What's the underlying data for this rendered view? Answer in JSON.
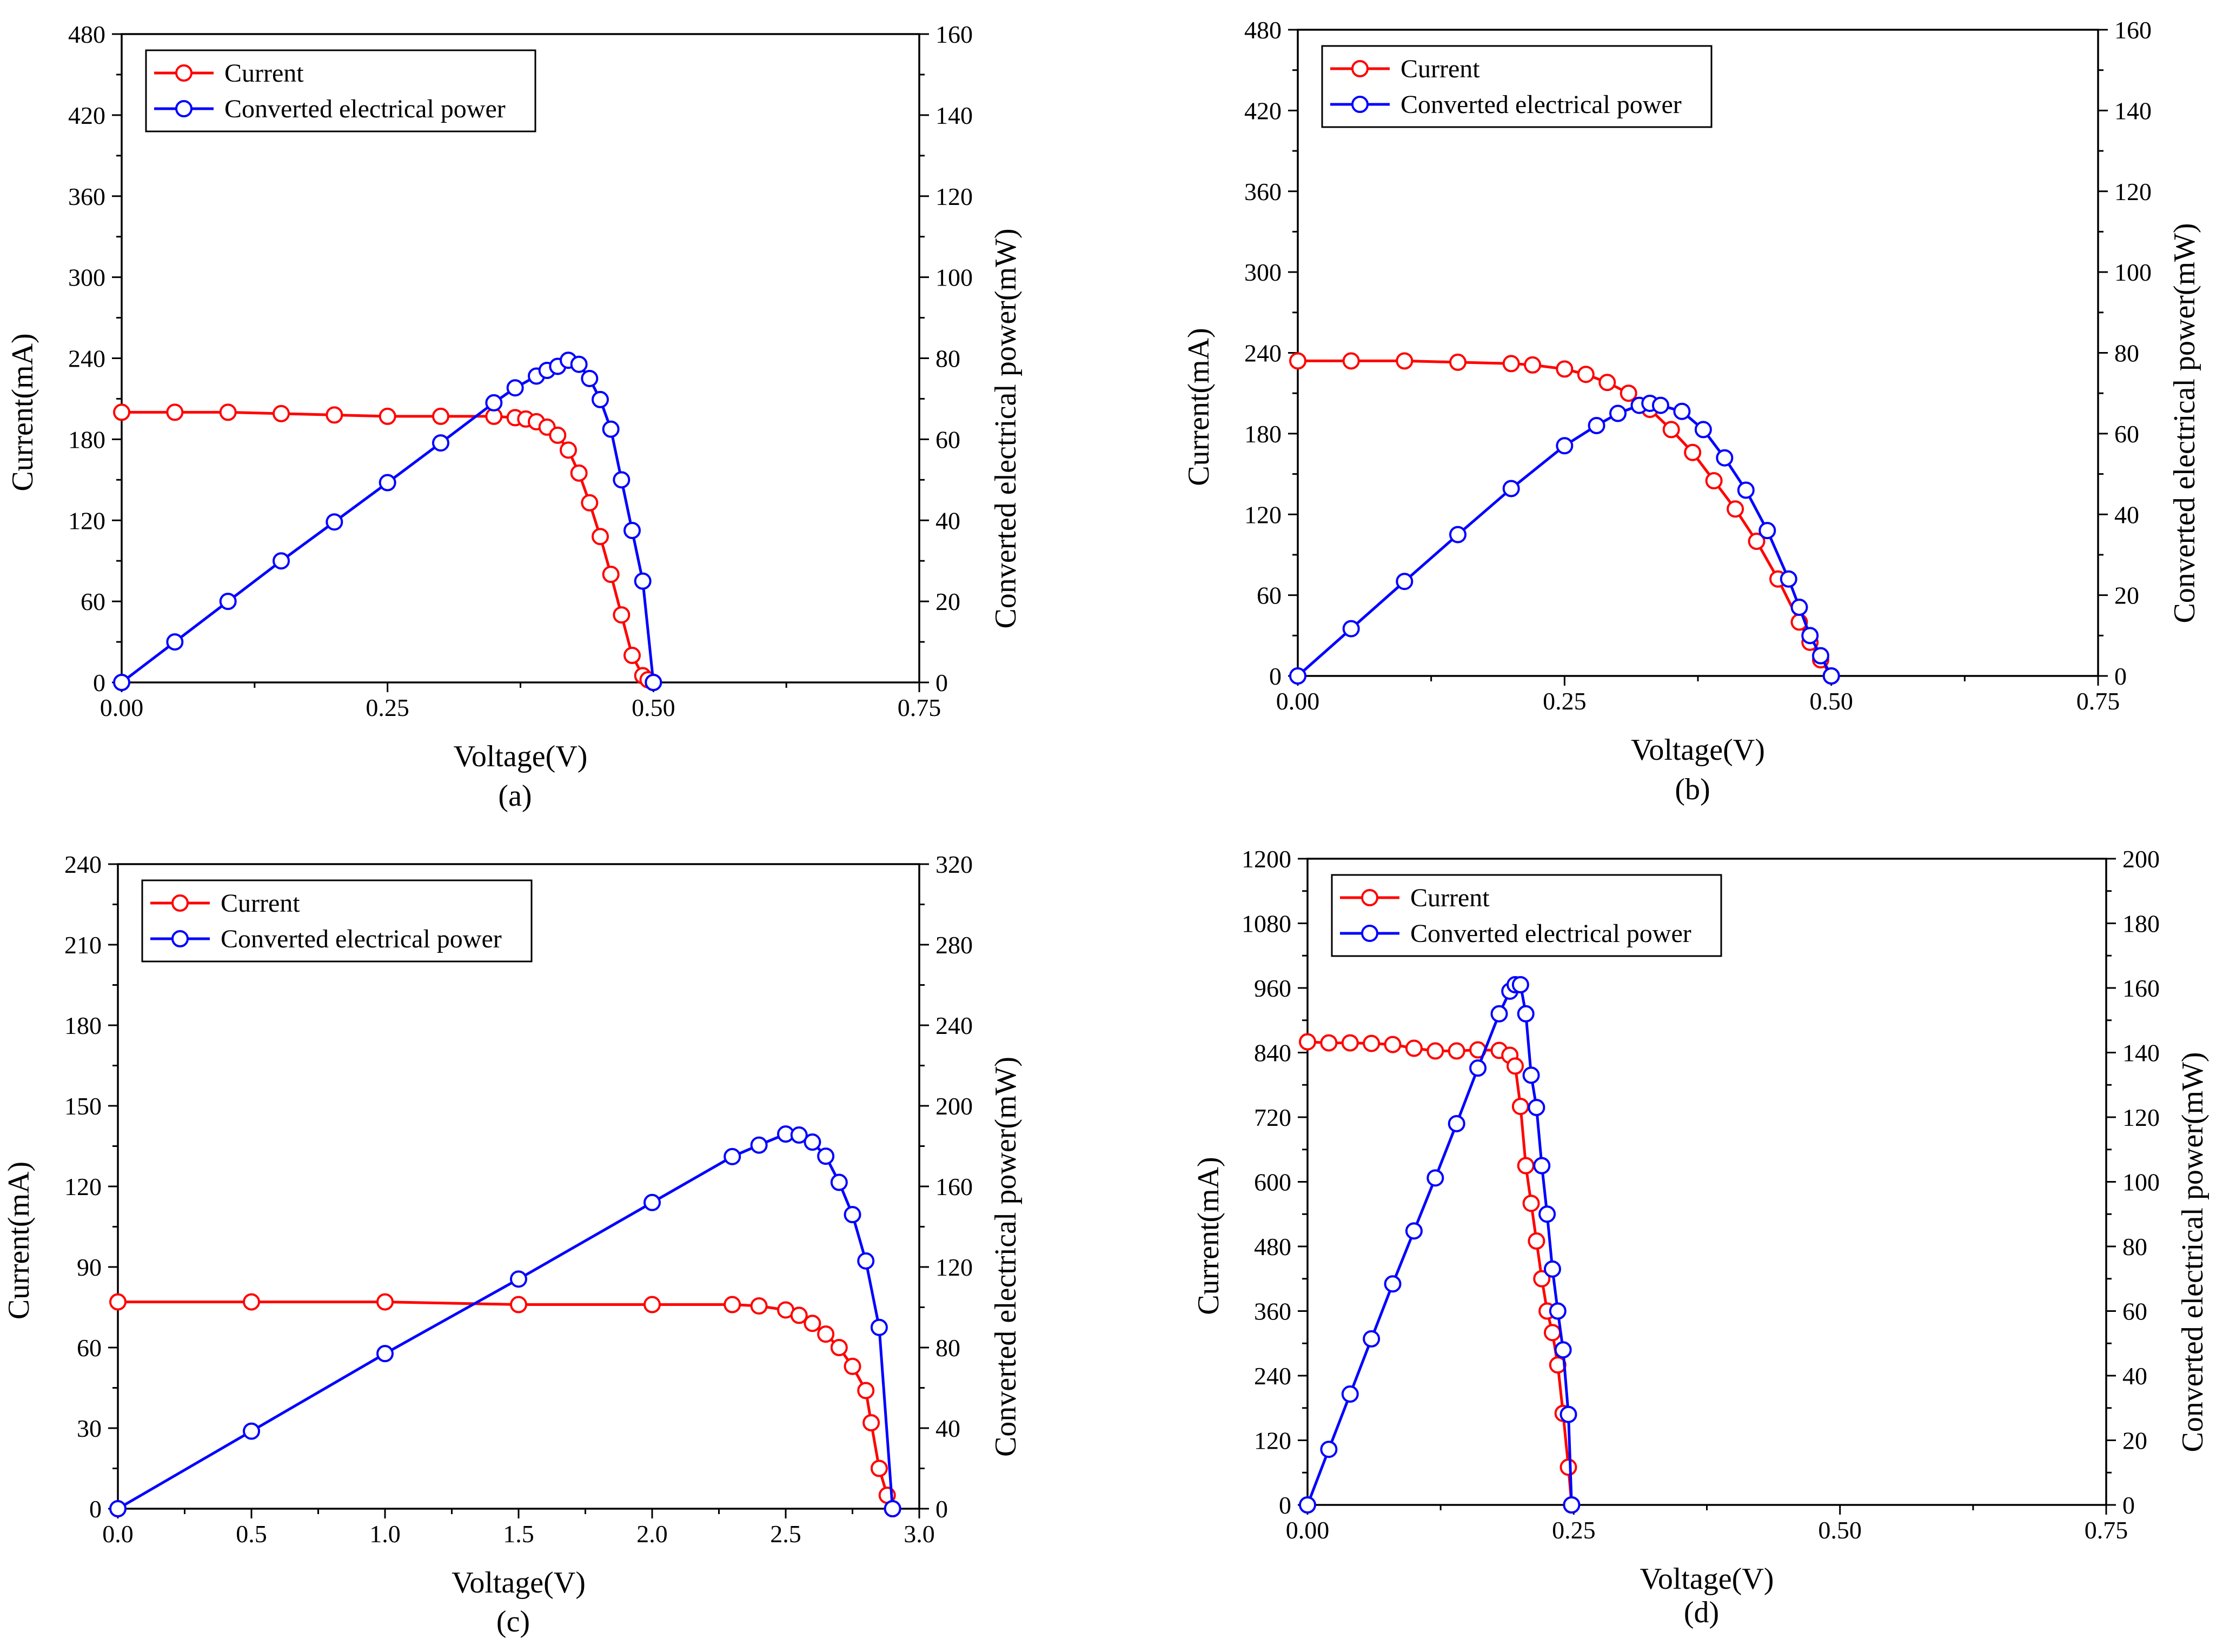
{
  "figure": {
    "colors": {
      "current": "#ff0000",
      "power": "#0000ff"
    }
  },
  "chart_data": [
    {
      "type": "line",
      "panel": "(a)",
      "xlabel": "Voltage(V)",
      "ylabel_left": "Current(mA)",
      "ylabel_right": "Converted electrical power(mW)",
      "xlim": [
        0,
        0.75
      ],
      "xticks": [
        0,
        0.25,
        0.5,
        0.75
      ],
      "xtick_labels": [
        "0.00",
        "0.25",
        "0.50",
        "0.75"
      ],
      "ylim_left": [
        0,
        480
      ],
      "yticks_left": [
        0,
        60,
        120,
        180,
        240,
        300,
        360,
        420,
        480
      ],
      "ylim_right": [
        0,
        160
      ],
      "yticks_right": [
        0,
        20,
        40,
        60,
        80,
        100,
        120,
        140,
        160
      ],
      "legend": [
        "Current",
        "Converted electrical power"
      ],
      "series": [
        {
          "name": "Current",
          "axis": "left",
          "x": [
            0.0,
            0.05,
            0.1,
            0.15,
            0.2,
            0.25,
            0.3,
            0.35,
            0.37,
            0.38,
            0.39,
            0.4,
            0.41,
            0.42,
            0.43,
            0.44,
            0.45,
            0.46,
            0.47,
            0.48,
            0.49,
            0.495,
            0.5
          ],
          "y": [
            200,
            200,
            200,
            199,
            198,
            197,
            197,
            197,
            196,
            195,
            193,
            189,
            183,
            172,
            155,
            133,
            108,
            80,
            50,
            20,
            5,
            2,
            0
          ]
        },
        {
          "name": "Converted electrical power",
          "axis": "right",
          "x": [
            0.0,
            0.05,
            0.1,
            0.15,
            0.2,
            0.25,
            0.3,
            0.35,
            0.37,
            0.39,
            0.4,
            0.41,
            0.42,
            0.43,
            0.44,
            0.45,
            0.46,
            0.47,
            0.48,
            0.49,
            0.5
          ],
          "y": [
            0,
            10.0,
            20.0,
            30.0,
            39.6,
            49.3,
            59.1,
            69.0,
            72.7,
            75.6,
            77.0,
            78.0,
            79.5,
            78.5,
            75.0,
            69.8,
            62.5,
            50.0,
            37.5,
            25.0,
            0
          ]
        }
      ]
    },
    {
      "type": "line",
      "panel": "(b)",
      "xlabel": "Voltage(V)",
      "ylabel_left": "Current(mA)",
      "ylabel_right": "Converted electrical power(mW)",
      "xlim": [
        0,
        0.75
      ],
      "xticks": [
        0,
        0.25,
        0.5,
        0.75
      ],
      "xtick_labels": [
        "0.00",
        "0.25",
        "0.50",
        "0.75"
      ],
      "ylim_left": [
        0,
        480
      ],
      "yticks_left": [
        0,
        60,
        120,
        180,
        240,
        300,
        360,
        420,
        480
      ],
      "ylim_right": [
        0,
        160
      ],
      "yticks_right": [
        0,
        20,
        40,
        60,
        80,
        100,
        120,
        140,
        160
      ],
      "legend": [
        "Current",
        "Converted electrical power"
      ],
      "series": [
        {
          "name": "Current",
          "axis": "left",
          "x": [
            0.0,
            0.05,
            0.1,
            0.15,
            0.2,
            0.22,
            0.25,
            0.27,
            0.29,
            0.31,
            0.33,
            0.35,
            0.37,
            0.39,
            0.41,
            0.43,
            0.45,
            0.47,
            0.48,
            0.49,
            0.5
          ],
          "y": [
            234,
            234,
            234,
            233,
            232,
            231,
            228,
            224,
            218,
            210,
            198,
            183,
            166,
            145,
            124,
            100,
            72,
            40,
            25,
            12,
            0
          ]
        },
        {
          "name": "Converted electrical power",
          "axis": "right",
          "x": [
            0.0,
            0.05,
            0.1,
            0.15,
            0.2,
            0.25,
            0.28,
            0.3,
            0.32,
            0.33,
            0.34,
            0.36,
            0.38,
            0.4,
            0.42,
            0.44,
            0.46,
            0.47,
            0.48,
            0.49,
            0.5
          ],
          "y": [
            0,
            11.7,
            23.4,
            35.0,
            46.4,
            57.0,
            62.0,
            65.0,
            67.0,
            67.5,
            67.0,
            65.5,
            61.0,
            54.0,
            46.0,
            36.0,
            24.0,
            17.0,
            10.0,
            5.0,
            0
          ]
        }
      ]
    },
    {
      "type": "line",
      "panel": "(c)",
      "xlabel": "Voltage(V)",
      "ylabel_left": "Current(mA)",
      "ylabel_right": "Converted electrical power(mW)",
      "xlim": [
        0,
        3.0
      ],
      "xticks": [
        0,
        0.5,
        1.0,
        1.5,
        2.0,
        2.5,
        3.0
      ],
      "xtick_labels": [
        "0.0",
        "0.5",
        "1.0",
        "1.5",
        "2.0",
        "2.5",
        "3.0"
      ],
      "ylim_left": [
        0,
        240
      ],
      "yticks_left": [
        0,
        30,
        60,
        90,
        120,
        150,
        180,
        210,
        240
      ],
      "ylim_right": [
        0,
        320
      ],
      "yticks_right": [
        0,
        40,
        80,
        120,
        160,
        200,
        240,
        280,
        320
      ],
      "legend": [
        "Current",
        "Converted electrical power"
      ],
      "series": [
        {
          "name": "Current",
          "axis": "left",
          "x": [
            0.0,
            0.5,
            1.0,
            1.5,
            2.0,
            2.3,
            2.4,
            2.5,
            2.55,
            2.6,
            2.65,
            2.7,
            2.75,
            2.8,
            2.82,
            2.85,
            2.88,
            2.9
          ],
          "y": [
            77,
            77,
            77,
            76,
            76,
            76,
            75.5,
            74,
            72,
            69,
            65,
            60,
            53,
            44,
            32,
            15,
            5,
            0
          ]
        },
        {
          "name": "Converted electrical power",
          "axis": "right",
          "x": [
            0.0,
            0.5,
            1.0,
            1.5,
            2.0,
            2.3,
            2.4,
            2.5,
            2.55,
            2.6,
            2.65,
            2.7,
            2.75,
            2.8,
            2.85,
            2.9
          ],
          "y": [
            0,
            38.5,
            77.0,
            114.0,
            152.0,
            174.8,
            180.5,
            186.0,
            185.5,
            182.0,
            175.0,
            162.0,
            146.0,
            123.0,
            90.0,
            0
          ]
        }
      ]
    },
    {
      "type": "line",
      "panel": "(d)",
      "xlabel": "Voltage(V)",
      "ylabel_left": "Current(mA)",
      "ylabel_right": "Converted electrical power(mW)",
      "xlim": [
        0,
        0.75
      ],
      "xticks": [
        0,
        0.25,
        0.5,
        0.75
      ],
      "xtick_labels": [
        "0.00",
        "0.25",
        "0.50",
        "0.75"
      ],
      "ylim_left": [
        0,
        1200
      ],
      "yticks_left": [
        0,
        120,
        240,
        360,
        480,
        600,
        720,
        840,
        960,
        1080,
        1200
      ],
      "ylim_right": [
        0,
        200
      ],
      "yticks_right": [
        0,
        20,
        40,
        60,
        80,
        100,
        120,
        140,
        160,
        180,
        200
      ],
      "legend": [
        "Current",
        "Converted electrical power"
      ],
      "series": [
        {
          "name": "Current",
          "axis": "left",
          "x": [
            0.0,
            0.02,
            0.04,
            0.06,
            0.08,
            0.1,
            0.12,
            0.14,
            0.16,
            0.18,
            0.19,
            0.195,
            0.2,
            0.205,
            0.21,
            0.215,
            0.22,
            0.225,
            0.23,
            0.235,
            0.24,
            0.245,
            0.248
          ],
          "y": [
            860,
            858,
            858,
            857,
            855,
            848,
            843,
            843,
            845,
            844,
            835,
            815,
            740,
            630,
            560,
            490,
            420,
            360,
            320,
            260,
            170,
            70,
            0
          ]
        },
        {
          "name": "Converted electrical power",
          "axis": "right",
          "x": [
            0.0,
            0.02,
            0.04,
            0.06,
            0.08,
            0.1,
            0.12,
            0.14,
            0.16,
            0.18,
            0.19,
            0.195,
            0.2,
            0.205,
            0.21,
            0.215,
            0.22,
            0.225,
            0.23,
            0.235,
            0.24,
            0.245,
            0.248
          ],
          "y": [
            0,
            17.2,
            34.3,
            51.4,
            68.4,
            84.8,
            101.2,
            118.0,
            135.2,
            152.0,
            159.0,
            161.0,
            161.0,
            152.0,
            133.0,
            123.0,
            105.0,
            90.0,
            73.0,
            60.0,
            48.0,
            28.0,
            0
          ]
        }
      ]
    }
  ]
}
